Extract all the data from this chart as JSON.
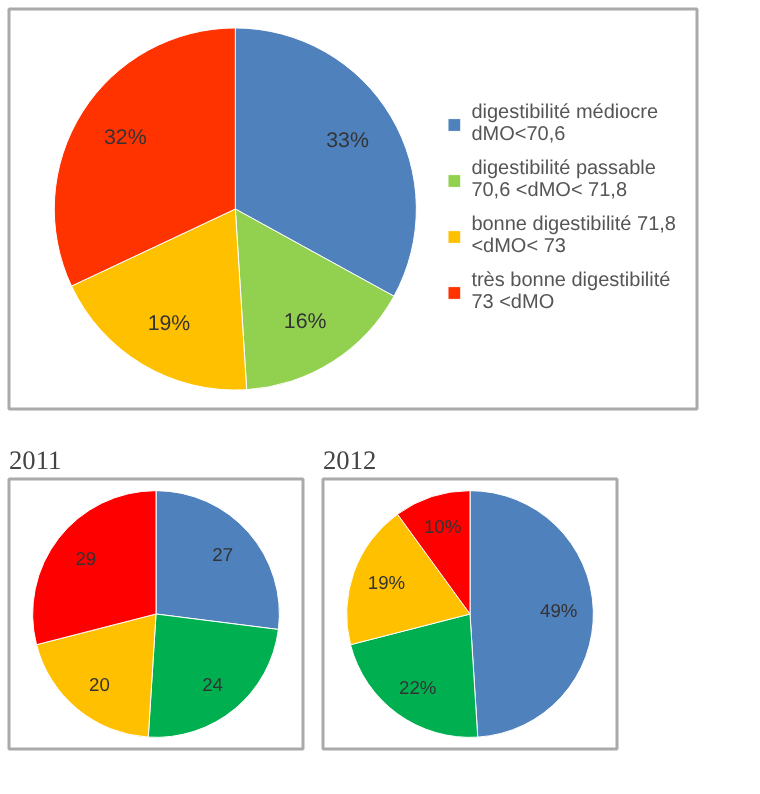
{
  "chart_data": [
    {
      "type": "pie",
      "categories": [
        "digestibilité médiocre dMO<70,6",
        "digestibilité passable 70,6 <dMO< 71,8",
        "bonne digestibilité 71,8 <dMO< 73",
        "très bonne digestibilité 73 <dMO"
      ],
      "values": [
        33,
        16,
        19,
        32
      ],
      "colors": [
        "#4f81bd",
        "#92d050",
        "#ffc000",
        "#ff3300"
      ],
      "value_labels": [
        "33%",
        "16%",
        "19%",
        "32%"
      ],
      "legend": "right"
    },
    {
      "type": "pie",
      "title": "2011",
      "categories": [
        null,
        null,
        null,
        null
      ],
      "values": [
        27,
        24,
        20,
        29
      ],
      "colors": [
        "#4f81bd",
        "#00b050",
        "#ffc000",
        "#ff0000"
      ],
      "value_labels": [
        "27",
        "24",
        "20",
        "29"
      ]
    },
    {
      "type": "pie",
      "title": "2012",
      "categories": [
        null,
        null,
        null,
        null
      ],
      "values": [
        49,
        22,
        19,
        10
      ],
      "colors": [
        "#4f81bd",
        "#00b050",
        "#ffc000",
        "#ff0000"
      ],
      "value_labels": [
        "49%",
        "22%",
        "19%",
        "10%"
      ]
    }
  ]
}
